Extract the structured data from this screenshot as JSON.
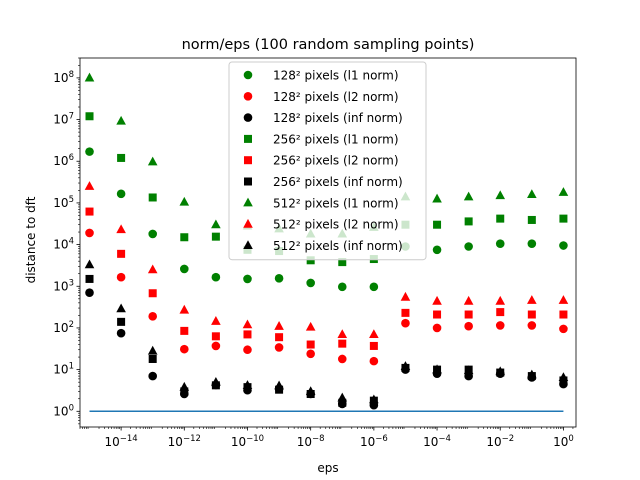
{
  "chart_data": {
    "type": "scatter",
    "title": "norm/eps (100 random sampling points)",
    "xlabel": "eps",
    "ylabel": "distance to dft",
    "x_scale": "log",
    "y_scale": "log",
    "xlim": [
      5e-16,
      2.5
    ],
    "ylim": [
      0.42,
      300000000.0
    ],
    "x_ticks": [
      {
        "value": 1e-14,
        "base": "10",
        "exp": "−14"
      },
      {
        "value": 1e-12,
        "base": "10",
        "exp": "−12"
      },
      {
        "value": 1e-10,
        "base": "10",
        "exp": "−10"
      },
      {
        "value": 1e-08,
        "base": "10",
        "exp": "−8"
      },
      {
        "value": 1e-06,
        "base": "10",
        "exp": "−6"
      },
      {
        "value": 0.0001,
        "base": "10",
        "exp": "−4"
      },
      {
        "value": 0.01,
        "base": "10",
        "exp": "−2"
      },
      {
        "value": 1,
        "base": "10",
        "exp": "0"
      }
    ],
    "y_ticks": [
      {
        "value": 1,
        "base": "10",
        "exp": "0"
      },
      {
        "value": 10,
        "base": "10",
        "exp": "1"
      },
      {
        "value": 100,
        "base": "10",
        "exp": "2"
      },
      {
        "value": 1000,
        "base": "10",
        "exp": "3"
      },
      {
        "value": 10000,
        "base": "10",
        "exp": "4"
      },
      {
        "value": 100000,
        "base": "10",
        "exp": "5"
      },
      {
        "value": 1000000,
        "base": "10",
        "exp": "6"
      },
      {
        "value": 10000000,
        "base": "10",
        "exp": "7"
      },
      {
        "value": 100000000,
        "base": "10",
        "exp": "8"
      }
    ],
    "x": [
      1e-15,
      1e-14,
      1e-13,
      1e-12,
      1e-11,
      1e-10,
      1e-09,
      1e-08,
      1e-07,
      1e-06,
      1e-05,
      0.0001,
      0.001,
      0.01,
      0.1,
      1
    ],
    "series": [
      {
        "name": "128² pixels (l1 norm)",
        "marker": "circle",
        "color": "#008000",
        "values": [
          1700000,
          165000,
          18000,
          2600,
          1650,
          1500,
          1550,
          1200,
          970,
          970,
          9000,
          7500,
          9000,
          10500,
          10500,
          9500
        ]
      },
      {
        "name": "128² pixels (l2 norm)",
        "marker": "circle",
        "color": "#ff0000",
        "values": [
          19000,
          1650,
          190,
          31,
          37,
          30,
          34,
          24,
          18,
          16,
          130,
          100,
          110,
          115,
          115,
          95
        ]
      },
      {
        "name": "128² pixels (inf norm)",
        "marker": "circle",
        "color": "#000000",
        "values": [
          700,
          75,
          7,
          2.6,
          4.3,
          3.2,
          3.5,
          2.6,
          1.5,
          1.4,
          10,
          8,
          7,
          8,
          6.5,
          4.5
        ]
      },
      {
        "name": "256² pixels (l1 norm)",
        "marker": "square",
        "color": "#008000",
        "values": [
          12000000,
          1200000,
          135000,
          15000,
          15500,
          7500,
          7000,
          4200,
          3800,
          4500,
          30000,
          30000,
          36000,
          42000,
          39000,
          42000
        ]
      },
      {
        "name": "256² pixels (l2 norm)",
        "marker": "square",
        "color": "#ff0000",
        "values": [
          62000,
          6000,
          680,
          85,
          63,
          70,
          60,
          40,
          42,
          37,
          230,
          210,
          210,
          240,
          210,
          210
        ]
      },
      {
        "name": "256² pixels (inf norm)",
        "marker": "square",
        "color": "#000000",
        "values": [
          1500,
          140,
          18,
          3.0,
          4.2,
          3.8,
          3.3,
          2.6,
          1.6,
          1.8,
          11,
          10,
          10,
          8.5,
          7,
          5.5
        ]
      },
      {
        "name": "512² pixels (l1 norm)",
        "marker": "triangle",
        "color": "#008000",
        "values": [
          100000000,
          9200000,
          970000,
          105000,
          30000,
          28000,
          24000,
          18000,
          18000,
          26000,
          140000,
          125000,
          140000,
          150000,
          160000,
          180000
        ]
      },
      {
        "name": "512² pixels (l2 norm)",
        "marker": "triangle",
        "color": "#ff0000",
        "values": [
          250000,
          23000,
          2500,
          270,
          145,
          120,
          110,
          105,
          70,
          70,
          550,
          440,
          440,
          440,
          460,
          460
        ]
      },
      {
        "name": "512² pixels (inf norm)",
        "marker": "triangle",
        "color": "#000000",
        "values": [
          3300,
          290,
          28,
          3.8,
          5.0,
          4.2,
          4.1,
          3.0,
          2.1,
          1.9,
          12,
          10,
          9.5,
          9,
          7.5,
          6.5
        ]
      }
    ],
    "reference_line": {
      "y": 1,
      "x_range": [
        1e-15,
        1
      ],
      "color": "#1f77b4"
    },
    "legend_position": "upper center",
    "grid": false
  }
}
